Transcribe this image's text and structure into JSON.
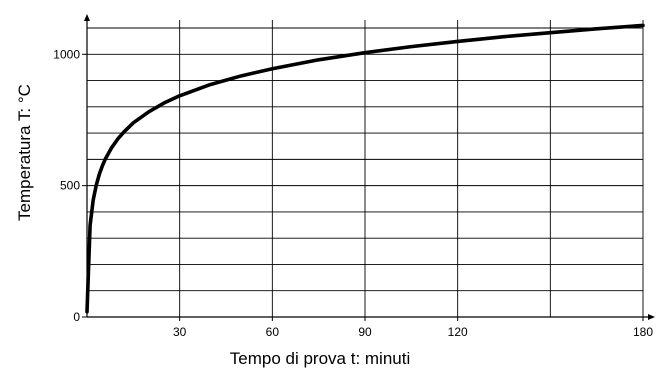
{
  "chart_data": {
    "type": "line",
    "title": "",
    "xlabel": "Tempo di prova t: minuti",
    "ylabel": "Temperatura T: °C",
    "xlim": [
      0,
      180
    ],
    "ylim": [
      0,
      1100
    ],
    "x_ticks": [
      30,
      60,
      90,
      120,
      180
    ],
    "x_tick_labels": [
      "30",
      "60",
      "90",
      "120",
      "180"
    ],
    "y_ticks": [
      0,
      500,
      1000
    ],
    "y_tick_labels": [
      "0",
      "500",
      "1000"
    ],
    "grid": true,
    "grid_x": [
      30,
      60,
      90,
      120,
      150,
      180
    ],
    "grid_y": [
      100,
      200,
      300,
      400,
      500,
      600,
      700,
      800,
      900,
      1000,
      1100
    ],
    "series": [
      {
        "color": "#000000",
        "x": [
          0,
          1,
          2,
          3,
          4,
          5,
          6,
          8,
          10,
          12,
          15,
          20,
          25,
          30,
          40,
          50,
          60,
          75,
          90,
          105,
          120,
          135,
          150,
          165,
          180
        ],
        "y": [
          20,
          349,
          445,
          502,
          544,
          576,
          603,
          645,
          678,
          705,
          739,
          781,
          815,
          842,
          885,
          918,
          945,
          979,
          1006,
          1029,
          1049,
          1067,
          1082,
          1097,
          1110
        ]
      }
    ]
  }
}
